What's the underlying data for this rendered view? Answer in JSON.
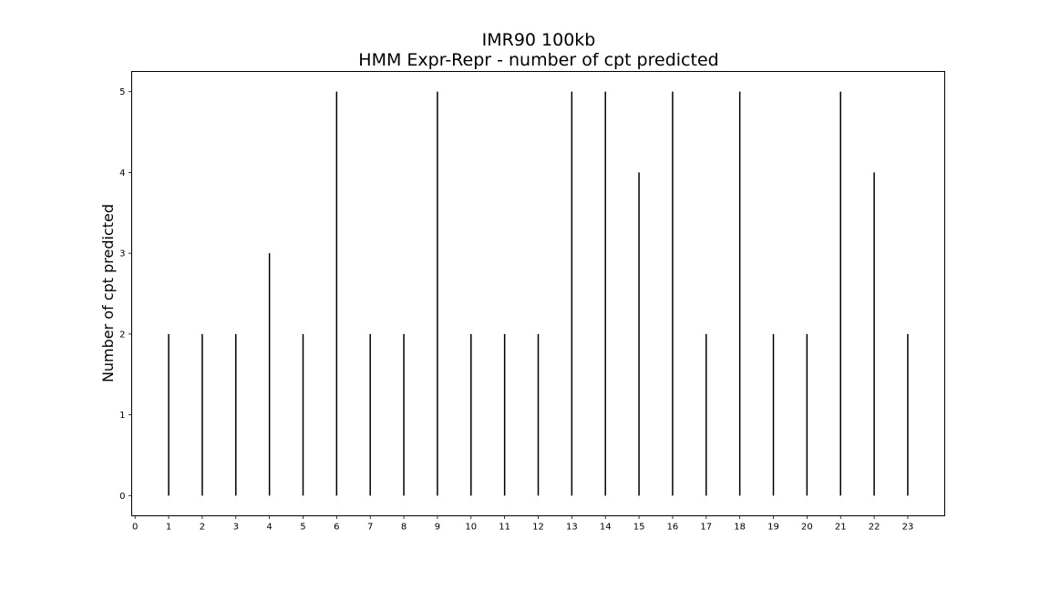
{
  "chart_data": {
    "type": "bar",
    "title": "IMR90 100kb",
    "subtitle": "HMM Expr-Repr - number of cpt predicted",
    "xlabel": "",
    "ylabel": "Number of cpt predicted",
    "x_ticks": [
      0,
      1,
      2,
      3,
      4,
      5,
      6,
      7,
      8,
      9,
      10,
      11,
      12,
      13,
      14,
      15,
      16,
      17,
      18,
      19,
      20,
      21,
      22,
      23
    ],
    "y_ticks": [
      0,
      1,
      2,
      3,
      4,
      5
    ],
    "xlim": [
      -0.1,
      24.1
    ],
    "ylim": [
      -0.25,
      5.25
    ],
    "categories": [
      1,
      2,
      3,
      4,
      5,
      6,
      7,
      8,
      9,
      10,
      11,
      12,
      13,
      14,
      15,
      16,
      17,
      18,
      19,
      20,
      21,
      22,
      23
    ],
    "values": [
      2,
      2,
      2,
      3,
      2,
      5,
      2,
      2,
      5,
      2,
      2,
      2,
      5,
      5,
      4,
      5,
      2,
      5,
      2,
      2,
      5,
      4,
      2
    ],
    "grid": false,
    "colors": {
      "bar": "#000000",
      "axes": "#000000",
      "background": "#ffffff"
    }
  }
}
